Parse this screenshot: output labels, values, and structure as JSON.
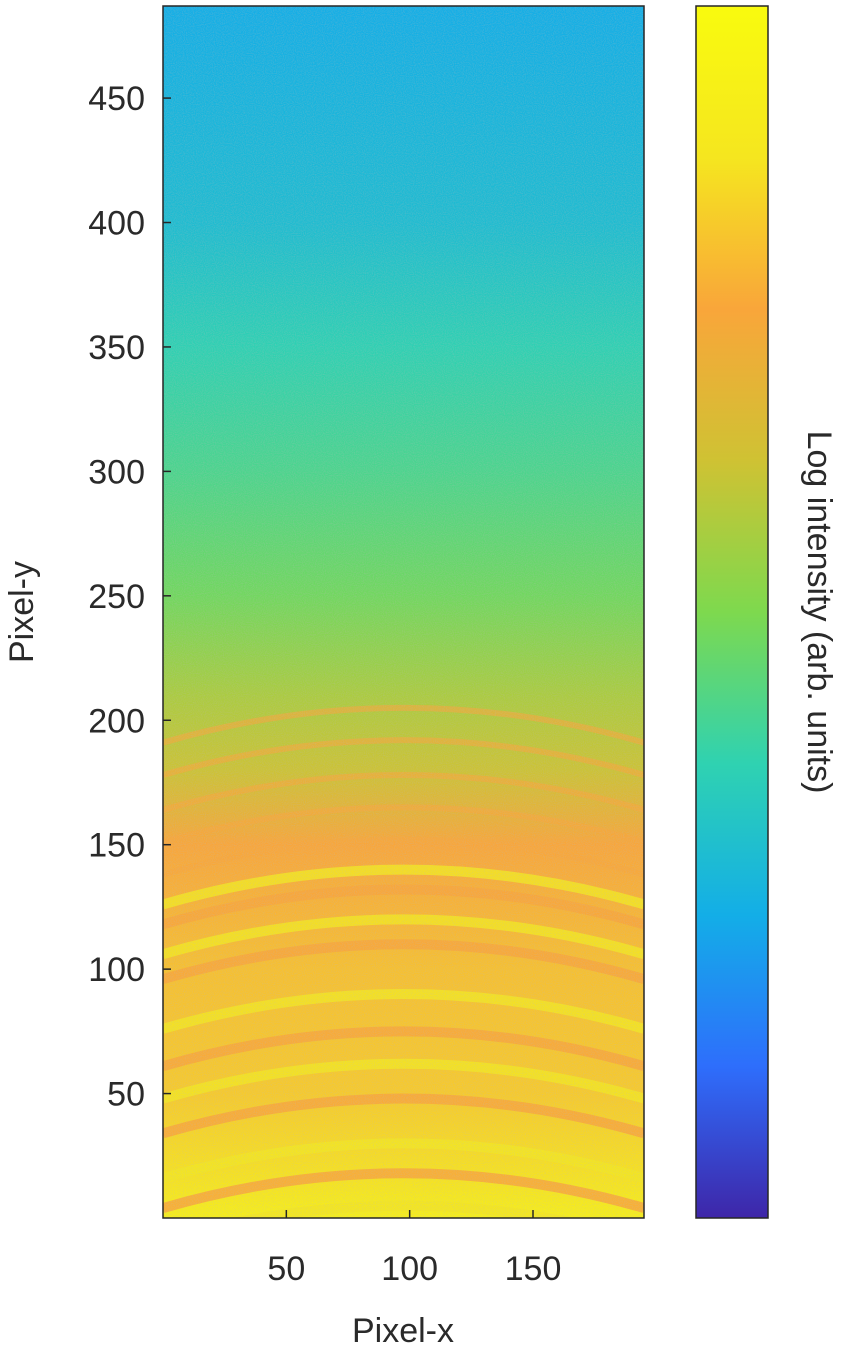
{
  "chart_data": {
    "type": "heatmap",
    "title": "",
    "xlabel": "Pixel-x",
    "ylabel": "Pixel-y",
    "colorbar_label": "Log intensity (arb. units)",
    "xlim": [
      0,
      195
    ],
    "ylim": [
      0,
      487
    ],
    "x_ticks": [
      50,
      100,
      150
    ],
    "y_ticks": [
      50,
      100,
      150,
      200,
      250,
      300,
      350,
      400,
      450
    ],
    "colormap": [
      "#3e26a8",
      "#2e6efc",
      "#13aee7",
      "#2fd2b1",
      "#7ed94e",
      "#cfc233",
      "#f9a63a",
      "#f5e61f",
      "#f9fb0e"
    ],
    "intensity_profile": [
      {
        "y": 0,
        "level": 0.93
      },
      {
        "y": 50,
        "level": 0.82
      },
      {
        "y": 100,
        "level": 0.8
      },
      {
        "y": 150,
        "level": 0.75
      },
      {
        "y": 180,
        "level": 0.62
      },
      {
        "y": 210,
        "level": 0.57
      },
      {
        "y": 250,
        "level": 0.48
      },
      {
        "y": 300,
        "level": 0.42
      },
      {
        "y": 350,
        "level": 0.37
      },
      {
        "y": 400,
        "level": 0.3
      },
      {
        "y": 450,
        "level": 0.27
      },
      {
        "y": 487,
        "level": 0.25
      }
    ],
    "rings_y_at_center": [
      5,
      18,
      30,
      48,
      62,
      75,
      90,
      110,
      120,
      132,
      140,
      152,
      165,
      178,
      192,
      205
    ],
    "grid": false
  }
}
